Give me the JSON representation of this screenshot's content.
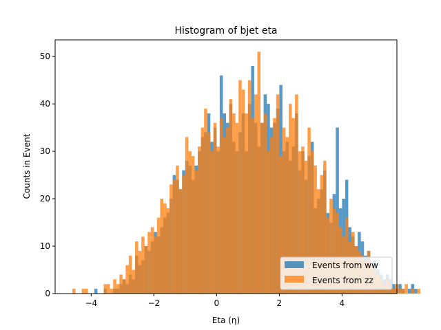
{
  "chart_data": {
    "type": "bar",
    "title": "Histogram of bjet eta",
    "xlabel": "Eta (η)",
    "ylabel": "Counts in Event",
    "xlim": [
      -5.15,
      5.75
    ],
    "ylim": [
      0,
      53.5
    ],
    "xticks": [
      -4,
      -2,
      0,
      2,
      4
    ],
    "yticks": [
      0,
      10,
      20,
      30,
      40,
      50
    ],
    "legend_position": "lower-right",
    "series": [
      {
        "name": "Events from ww",
        "color": "#1f77b4",
        "bin_start": -4.6,
        "bin_width": 0.1,
        "counts": [
          0,
          0,
          0,
          0,
          0,
          0,
          0,
          1,
          0,
          0,
          1,
          0,
          0,
          1,
          1,
          2,
          3,
          2,
          4,
          3,
          8,
          6,
          7,
          10,
          9,
          11,
          13,
          12,
          14,
          16,
          17,
          20,
          25,
          24,
          22,
          26,
          28,
          27,
          24,
          27,
          30,
          33,
          34,
          38,
          32,
          35,
          30,
          46,
          38,
          36,
          40,
          32,
          30,
          34,
          38,
          30,
          40,
          48,
          36,
          31,
          36,
          42,
          40,
          35,
          36,
          39,
          44,
          30,
          32,
          28,
          31,
          38,
          26,
          30,
          24,
          29,
          32,
          18,
          20,
          22,
          26,
          17,
          15,
          21,
          35,
          18,
          20,
          24,
          14,
          12,
          10,
          13,
          11,
          8,
          9,
          6,
          7,
          5,
          4,
          3,
          4,
          3,
          2,
          1,
          2,
          1,
          0,
          1,
          2,
          1,
          0,
          0,
          0,
          0,
          0,
          0,
          0,
          0,
          0,
          0,
          0,
          0,
          0,
          0,
          0,
          0,
          0,
          0,
          0,
          0,
          0,
          0,
          0,
          0,
          0,
          0,
          0,
          0,
          0,
          0,
          0,
          0,
          0,
          0,
          0,
          0,
          0,
          0,
          0,
          0,
          0,
          0,
          0,
          0,
          0,
          0,
          0,
          0,
          0,
          0,
          0,
          0,
          0,
          0,
          0,
          0,
          0,
          0,
          0,
          0,
          0,
          0,
          0,
          0,
          1
        ]
      },
      {
        "name": "Events from zz",
        "color": "#ff7f0e",
        "bin_start": -4.6,
        "bin_width": 0.1,
        "counts": [
          1,
          0,
          0,
          1,
          1,
          0,
          0,
          0,
          0,
          0,
          2,
          2,
          1,
          3,
          2,
          4,
          3,
          6,
          8,
          5,
          11,
          9,
          12,
          10,
          13,
          14,
          12,
          16,
          20,
          19,
          18,
          23,
          24,
          27,
          22,
          25,
          33,
          30,
          29,
          26,
          31,
          35,
          39,
          34,
          30,
          36,
          31,
          37,
          33,
          35,
          41,
          38,
          36,
          45,
          43,
          38,
          45,
          37,
          42,
          51,
          36,
          38,
          30,
          33,
          37,
          42,
          29,
          35,
          33,
          40,
          37,
          42,
          30,
          31,
          28,
          35,
          30,
          27,
          22,
          25,
          28,
          16,
          20,
          18,
          17,
          14,
          12,
          16,
          11,
          13,
          10,
          9,
          8,
          7,
          9,
          6,
          5,
          4,
          3,
          2,
          3,
          2,
          1,
          2,
          1,
          1,
          2,
          0,
          1,
          0,
          1,
          0,
          0,
          0,
          0,
          0,
          0
        ]
      }
    ]
  }
}
